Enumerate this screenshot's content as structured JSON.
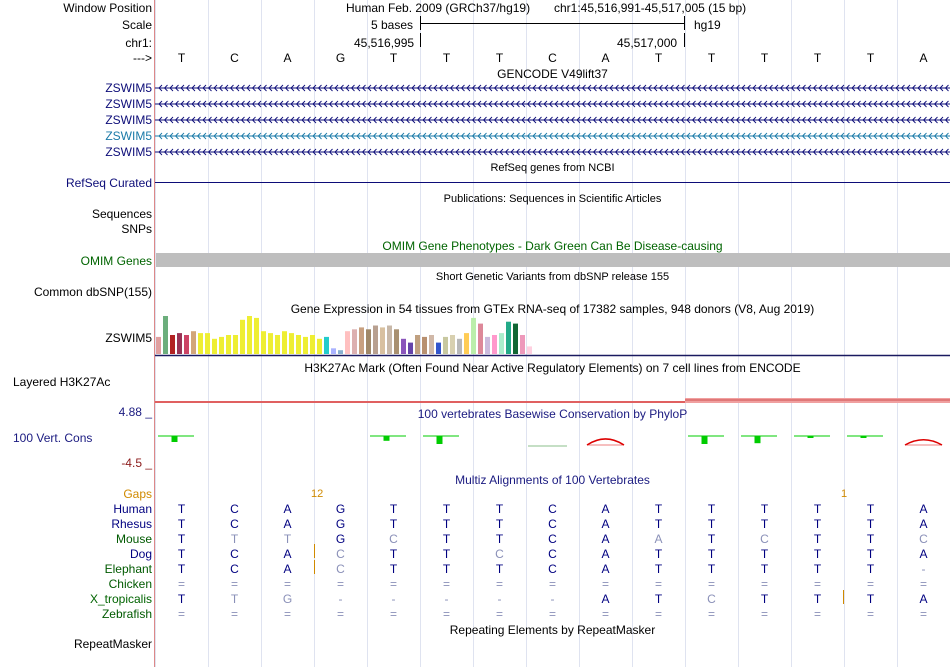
{
  "header": {
    "window_position_label": "Window Position",
    "scale_label": "Scale",
    "chrom_label": "chr1:",
    "arrow_label": "--->",
    "assembly_text": "Human Feb. 2009 (GRCh37/hg19)",
    "region_text": "chr1:45,516,991-45,517,005 (15 bp)",
    "scale_text": "5 bases",
    "db_text": "hg19",
    "coord_left": "45,516,995",
    "coord_right": "45,517,000",
    "bases": [
      "T",
      "C",
      "A",
      "G",
      "T",
      "T",
      "T",
      "C",
      "A",
      "T",
      "T",
      "T",
      "T",
      "T",
      "A"
    ]
  },
  "tracks": {
    "gencode": {
      "title": "GENCODE V49lift37",
      "genes": [
        "ZSWIM5",
        "ZSWIM5",
        "ZSWIM5",
        "ZSWIM5",
        "ZSWIM5"
      ]
    },
    "refseq": {
      "title": "RefSeq genes from NCBI",
      "label": "RefSeq Curated"
    },
    "publications": {
      "title": "Publications: Sequences in Scientific Articles",
      "label1": "Sequences",
      "label2": "SNPs"
    },
    "omim": {
      "title": "OMIM Gene Phenotypes - Dark Green Can Be Disease-causing",
      "label": "OMIM Genes"
    },
    "dbsnp": {
      "title": "Short Genetic Variants from dbSNP release 155",
      "label": "Common dbSNP(155)"
    },
    "gtex": {
      "title": "Gene Expression in 54 tissues from GTEx RNA-seq of 17382 samples, 948 donors (V8, Aug 2019)",
      "label": "ZSWIM5",
      "bar_heights": [
        0.45,
        1.0,
        0.5,
        0.55,
        0.5,
        0.6,
        0.55,
        0.55,
        0.4,
        0.45,
        0.5,
        0.5,
        0.9,
        1.0,
        0.95,
        0.6,
        0.55,
        0.5,
        0.6,
        0.55,
        0.5,
        0.45,
        0.5,
        0.4,
        0.45,
        0.15,
        0.1,
        0.6,
        0.65,
        0.7,
        0.65,
        0.75,
        0.7,
        0.75,
        0.65,
        0.4,
        0.3,
        0.5,
        0.45,
        0.5,
        0.3,
        0.45,
        0.5,
        0.4,
        0.55,
        0.95,
        0.8,
        0.45,
        0.5,
        0.55,
        0.85,
        0.8,
        0.5,
        0.2
      ],
      "bar_colors": [
        "#e09f9f",
        "#6cae7c",
        "#b22222",
        "#993355",
        "#cc4466",
        "#d2a679",
        "#eeee33",
        "#eeee33",
        "#eeee33",
        "#eeee33",
        "#eeee33",
        "#eeee33",
        "#eeee33",
        "#eeee33",
        "#eeee33",
        "#eeee33",
        "#eeee33",
        "#eeee33",
        "#eeee33",
        "#eeee33",
        "#eeee33",
        "#eeee33",
        "#eeee33",
        "#eeee33",
        "#22cccc",
        "#aab3ff",
        "#88b0d0",
        "#ffc0c0",
        "#dcb0b0",
        "#c8a080",
        "#a08868",
        "#b8a090",
        "#d8c0a0",
        "#c8b8a8",
        "#a89070",
        "#8a55bb",
        "#6644aa",
        "#c0a080",
        "#b89070",
        "#d0b8a8",
        "#3355cc",
        "#c8c8a0",
        "#d8d0b0",
        "#b8b8b8",
        "#ffcc55",
        "#bbeeaa",
        "#dd8899",
        "#ccbbdd",
        "#ff99cc",
        "#aaeecc",
        "#22aa88",
        "#116633",
        "#ee99bb",
        "#ffd0e0"
      ]
    },
    "h3k27ac": {
      "title": "H3K27Ac Mark (Often Found Near Active Regulatory Elements) on 7 cell lines from ENCODE",
      "label": "Layered H3K27Ac"
    },
    "phylop": {
      "title": "100 vertebrates Basewise Conservation by PhyloP",
      "label": "100 Vert. Cons",
      "ymax": "4.88 _",
      "ymin": "-4.5 _",
      "values": [
        1.5,
        0,
        0,
        0,
        1.2,
        2.0,
        0,
        -0.1,
        -3.2,
        0,
        2.0,
        1.8,
        0.4,
        0.3,
        -2.2
      ]
    },
    "multiz": {
      "title": "Multiz Alignments of 100 Vertebrates",
      "gaps_label": "Gaps",
      "gap_counts": [
        {
          "col": 2,
          "text": "12"
        },
        {
          "col": 12,
          "text": "1"
        }
      ],
      "species": [
        {
          "name": "Human",
          "bases": [
            "T",
            "C",
            "A",
            "G",
            "T",
            "T",
            "T",
            "C",
            "A",
            "T",
            "T",
            "T",
            "T",
            "T",
            "A"
          ]
        },
        {
          "name": "Rhesus",
          "bases": [
            "T",
            "C",
            "A",
            "G",
            "T",
            "T",
            "T",
            "C",
            "A",
            "T",
            "T",
            "T",
            "T",
            "T",
            "A"
          ]
        },
        {
          "name": "Mouse",
          "bases": [
            "T",
            "T",
            "T",
            "G",
            "C",
            "T",
            "T",
            "C",
            "A",
            "A",
            "T",
            "C",
            "T",
            "T",
            "C"
          ]
        },
        {
          "name": "Dog",
          "bases": [
            "T",
            "C",
            "A",
            "C",
            "T",
            "T",
            "C",
            "C",
            "A",
            "T",
            "T",
            "T",
            "T",
            "T",
            "A"
          ]
        },
        {
          "name": "Elephant",
          "bases": [
            "T",
            "C",
            "A",
            "C",
            "T",
            "T",
            "T",
            "C",
            "A",
            "T",
            "T",
            "T",
            "T",
            "T",
            "-"
          ]
        },
        {
          "name": "Chicken",
          "bases": [
            "=",
            "=",
            "=",
            "=",
            "=",
            "=",
            "=",
            "=",
            "=",
            "=",
            "=",
            "=",
            "=",
            "=",
            "="
          ]
        },
        {
          "name": "X_tropicalis",
          "bases": [
            "T",
            "T",
            "G",
            "-",
            "-",
            "-",
            "-",
            "-",
            "A",
            "T",
            "C",
            "T",
            "T",
            "T",
            "A"
          ]
        },
        {
          "name": "Zebrafish",
          "bases": [
            "=",
            "=",
            "=",
            "=",
            "=",
            "=",
            "=",
            "=",
            "=",
            "=",
            "=",
            "=",
            "=",
            "=",
            "="
          ]
        }
      ]
    },
    "repeatmasker": {
      "title": "Repeating Elements by RepeatMasker",
      "label": "RepeatMasker"
    }
  },
  "colors": {
    "navy": "#000080",
    "gencode_blue": "#0c0c78",
    "gencode_teal": "#1a7aa8",
    "omim_green": "#006400",
    "gaps_orange": "#d08a00",
    "mouse_green": "#005a00",
    "omim_gray": "#bebebe",
    "phylop_green": "#00cc00",
    "phylop_red": "#dd0000"
  }
}
